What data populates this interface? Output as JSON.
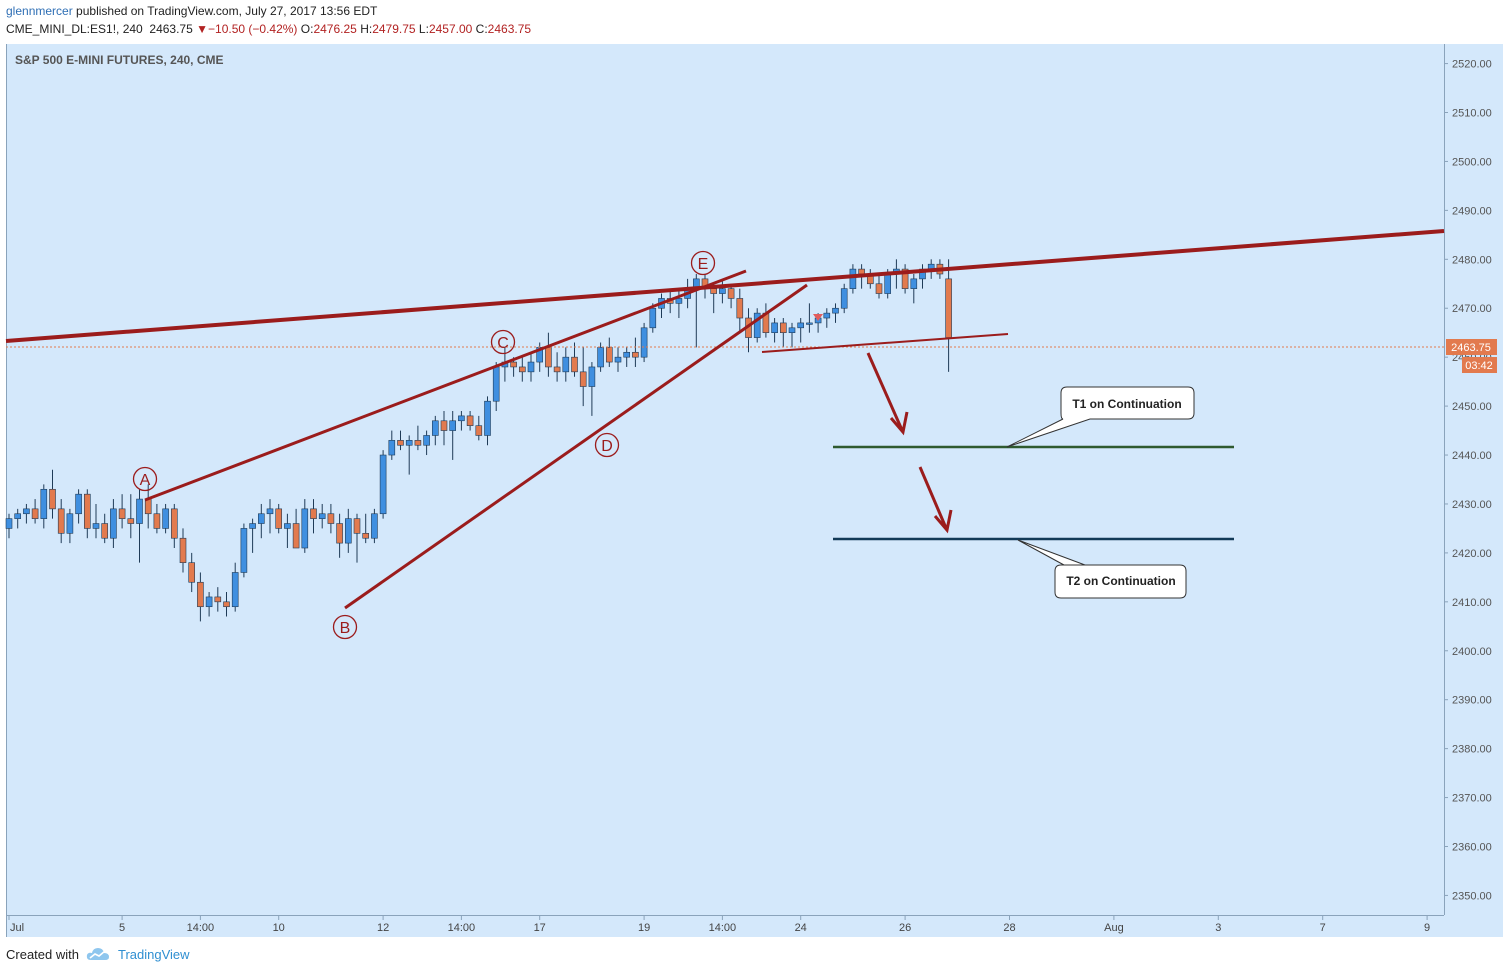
{
  "header": {
    "user": "glennmercer",
    "published": "published on TradingView.com, July 27, 2017 13:56 EDT",
    "symbol": "CME_MINI_DL:ES1!, 240",
    "last": "2463.75",
    "change": "−10.50 (−0.42%)",
    "o_label": "O:",
    "o": "2476.25",
    "h_label": "H:",
    "h": "2479.75",
    "l_label": "L:",
    "l": "2457.00",
    "c_label": "C:",
    "c": "2463.75"
  },
  "footer": {
    "created_with": "Created with",
    "brand": "TradingView"
  },
  "colors": {
    "background": "#d4e8fb",
    "up": "#3f8fe0",
    "down": "#e27a4e",
    "trendline": "#9b1c1c",
    "t1": "#2f5a2f",
    "t2": "#123a57",
    "price_tag": "#e27a4e"
  },
  "chart_data": {
    "type": "candlestick",
    "title": "S&P 500 E-MINI FUTURES, 240, CME",
    "price_tag": "2463.75",
    "countdown": "03:42",
    "ylim": [
      2346,
      2524
    ],
    "y_ticks": [
      "2520.00",
      "2510.00",
      "2500.00",
      "2490.00",
      "2480.00",
      "2470.00",
      "2460.00",
      "2450.00",
      "2440.00",
      "2430.00",
      "2420.00",
      "2410.00",
      "2400.00",
      "2390.00",
      "2380.00",
      "2370.00",
      "2360.00",
      "2350.00"
    ],
    "y_tick_values": [
      2520,
      2510,
      2500,
      2490,
      2480,
      2470,
      2460,
      2450,
      2440,
      2430,
      2420,
      2410,
      2400,
      2390,
      2380,
      2370,
      2360,
      2350
    ],
    "x_ticks": [
      "Jul",
      "5",
      "14:00",
      "10",
      "12",
      "14:00",
      "17",
      "19",
      "14:00",
      "24",
      "26",
      "28",
      "Aug",
      "3",
      "7",
      "9"
    ],
    "x_tick_index": [
      0,
      13,
      22,
      31,
      43,
      52,
      61,
      73,
      82,
      91,
      103,
      115,
      127,
      139,
      151,
      163
    ],
    "candles": [
      [
        2425,
        2428,
        2423,
        2427
      ],
      [
        2427,
        2429,
        2425,
        2428
      ],
      [
        2428,
        2430,
        2426,
        2429
      ],
      [
        2429,
        2431,
        2426,
        2427
      ],
      [
        2427,
        2434,
        2425,
        2433
      ],
      [
        2433,
        2437,
        2427,
        2429
      ],
      [
        2429,
        2431,
        2422,
        2424
      ],
      [
        2424,
        2429,
        2422,
        2428
      ],
      [
        2428,
        2433,
        2426,
        2432
      ],
      [
        2432,
        2433,
        2423,
        2425
      ],
      [
        2425,
        2430,
        2423,
        2426
      ],
      [
        2426,
        2428,
        2422,
        2423
      ],
      [
        2423,
        2431,
        2421,
        2429
      ],
      [
        2429,
        2432,
        2425,
        2427
      ],
      [
        2427,
        2432,
        2423,
        2426
      ],
      [
        2426,
        2433,
        2418,
        2431
      ],
      [
        2431,
        2434,
        2425,
        2428
      ],
      [
        2428,
        2430,
        2424,
        2425
      ],
      [
        2425,
        2430,
        2424,
        2429
      ],
      [
        2429,
        2430,
        2421,
        2423
      ],
      [
        2423,
        2425,
        2416,
        2418
      ],
      [
        2418,
        2420,
        2412,
        2414
      ],
      [
        2414,
        2416,
        2406,
        2409
      ],
      [
        2409,
        2412,
        2407,
        2411
      ],
      [
        2411,
        2413,
        2408,
        2410
      ],
      [
        2410,
        2412,
        2407,
        2409
      ],
      [
        2409,
        2418,
        2408,
        2416
      ],
      [
        2416,
        2426,
        2415,
        2425
      ],
      [
        2425,
        2427,
        2420,
        2426
      ],
      [
        2426,
        2430,
        2423,
        2428
      ],
      [
        2428,
        2431,
        2424,
        2429
      ],
      [
        2429,
        2430,
        2424,
        2425
      ],
      [
        2425,
        2428,
        2421,
        2426
      ],
      [
        2426,
        2429,
        2421,
        2421
      ],
      [
        2421,
        2431,
        2420,
        2429
      ],
      [
        2429,
        2431,
        2424,
        2427
      ],
      [
        2427,
        2430,
        2425,
        2428
      ],
      [
        2428,
        2430,
        2424,
        2426
      ],
      [
        2426,
        2428,
        2419,
        2422
      ],
      [
        2422,
        2429,
        2420,
        2427
      ],
      [
        2427,
        2428,
        2418,
        2424
      ],
      [
        2424,
        2428,
        2422,
        2423
      ],
      [
        2423,
        2429,
        2422,
        2428
      ],
      [
        2428,
        2441,
        2427,
        2440
      ],
      [
        2440,
        2445,
        2439,
        2443
      ],
      [
        2443,
        2445,
        2441,
        2442
      ],
      [
        2442,
        2444,
        2436,
        2443
      ],
      [
        2443,
        2446,
        2441,
        2442
      ],
      [
        2442,
        2445,
        2440,
        2444
      ],
      [
        2444,
        2448,
        2442,
        2447
      ],
      [
        2447,
        2449,
        2442,
        2445
      ],
      [
        2445,
        2449,
        2439,
        2447
      ],
      [
        2447,
        2449,
        2445,
        2448
      ],
      [
        2448,
        2449,
        2445,
        2446
      ],
      [
        2446,
        2448,
        2443,
        2444
      ],
      [
        2444,
        2452,
        2442,
        2451
      ],
      [
        2451,
        2459,
        2449,
        2458
      ],
      [
        2458,
        2462,
        2455,
        2459
      ],
      [
        2459,
        2460,
        2456,
        2458
      ],
      [
        2458,
        2460,
        2455,
        2457
      ],
      [
        2457,
        2461,
        2455,
        2459
      ],
      [
        2459,
        2463,
        2457,
        2462
      ],
      [
        2462,
        2465,
        2456,
        2458
      ],
      [
        2458,
        2461,
        2455,
        2457
      ],
      [
        2457,
        2462,
        2455,
        2460
      ],
      [
        2460,
        2463,
        2456,
        2457
      ],
      [
        2457,
        2462,
        2450,
        2454
      ],
      [
        2454,
        2459,
        2448,
        2458
      ],
      [
        2458,
        2463,
        2457,
        2462
      ],
      [
        2462,
        2464,
        2458,
        2459
      ],
      [
        2459,
        2462,
        2457,
        2460
      ],
      [
        2460,
        2462,
        2458,
        2461
      ],
      [
        2461,
        2464,
        2458,
        2460
      ],
      [
        2460,
        2467,
        2459,
        2466
      ],
      [
        2466,
        2471,
        2465,
        2470
      ],
      [
        2470,
        2473,
        2468,
        2472
      ],
      [
        2472,
        2474,
        2469,
        2471
      ],
      [
        2471,
        2474,
        2468,
        2472
      ],
      [
        2472,
        2476,
        2470,
        2474
      ],
      [
        2474,
        2477,
        2462,
        2476
      ],
      [
        2476,
        2477,
        2472,
        2474
      ],
      [
        2474,
        2475,
        2469,
        2473
      ],
      [
        2473,
        2476,
        2471,
        2474
      ],
      [
        2474,
        2475,
        2470,
        2472
      ],
      [
        2472,
        2474,
        2465,
        2468
      ],
      [
        2468,
        2470,
        2461,
        2464
      ],
      [
        2464,
        2470,
        2463,
        2469
      ],
      [
        2469,
        2471,
        2464,
        2465
      ],
      [
        2465,
        2468,
        2463,
        2467
      ],
      [
        2467,
        2468,
        2462,
        2465
      ],
      [
        2465,
        2467,
        2462,
        2466
      ],
      [
        2466,
        2468,
        2463,
        2467
      ],
      [
        2467,
        2471,
        2465,
        2467
      ],
      [
        2467,
        2469,
        2465,
        2468
      ],
      [
        2468,
        2470,
        2466,
        2469
      ],
      [
        2469,
        2471,
        2467,
        2470
      ],
      [
        2470,
        2475,
        2469,
        2474
      ],
      [
        2474,
        2479,
        2473,
        2478
      ],
      [
        2478,
        2479,
        2474,
        2477
      ],
      [
        2477,
        2478,
        2474,
        2475
      ],
      [
        2475,
        2477,
        2472,
        2473
      ],
      [
        2473,
        2478,
        2472,
        2477
      ],
      [
        2477,
        2480,
        2474,
        2478
      ],
      [
        2478,
        2479,
        2473,
        2474
      ],
      [
        2474,
        2477,
        2471,
        2476
      ],
      [
        2476,
        2479,
        2474,
        2478
      ],
      [
        2478,
        2480,
        2476,
        2479
      ],
      [
        2479,
        2480,
        2476,
        2477
      ],
      [
        2476,
        2480,
        2457,
        2464
      ]
    ],
    "labels": [
      "A",
      "B",
      "C",
      "D",
      "E"
    ],
    "targets": [
      {
        "label": "T1 on Continuation",
        "price": 2443
      },
      {
        "label": "T2 on Continuation",
        "price": 2424.5
      }
    ]
  }
}
